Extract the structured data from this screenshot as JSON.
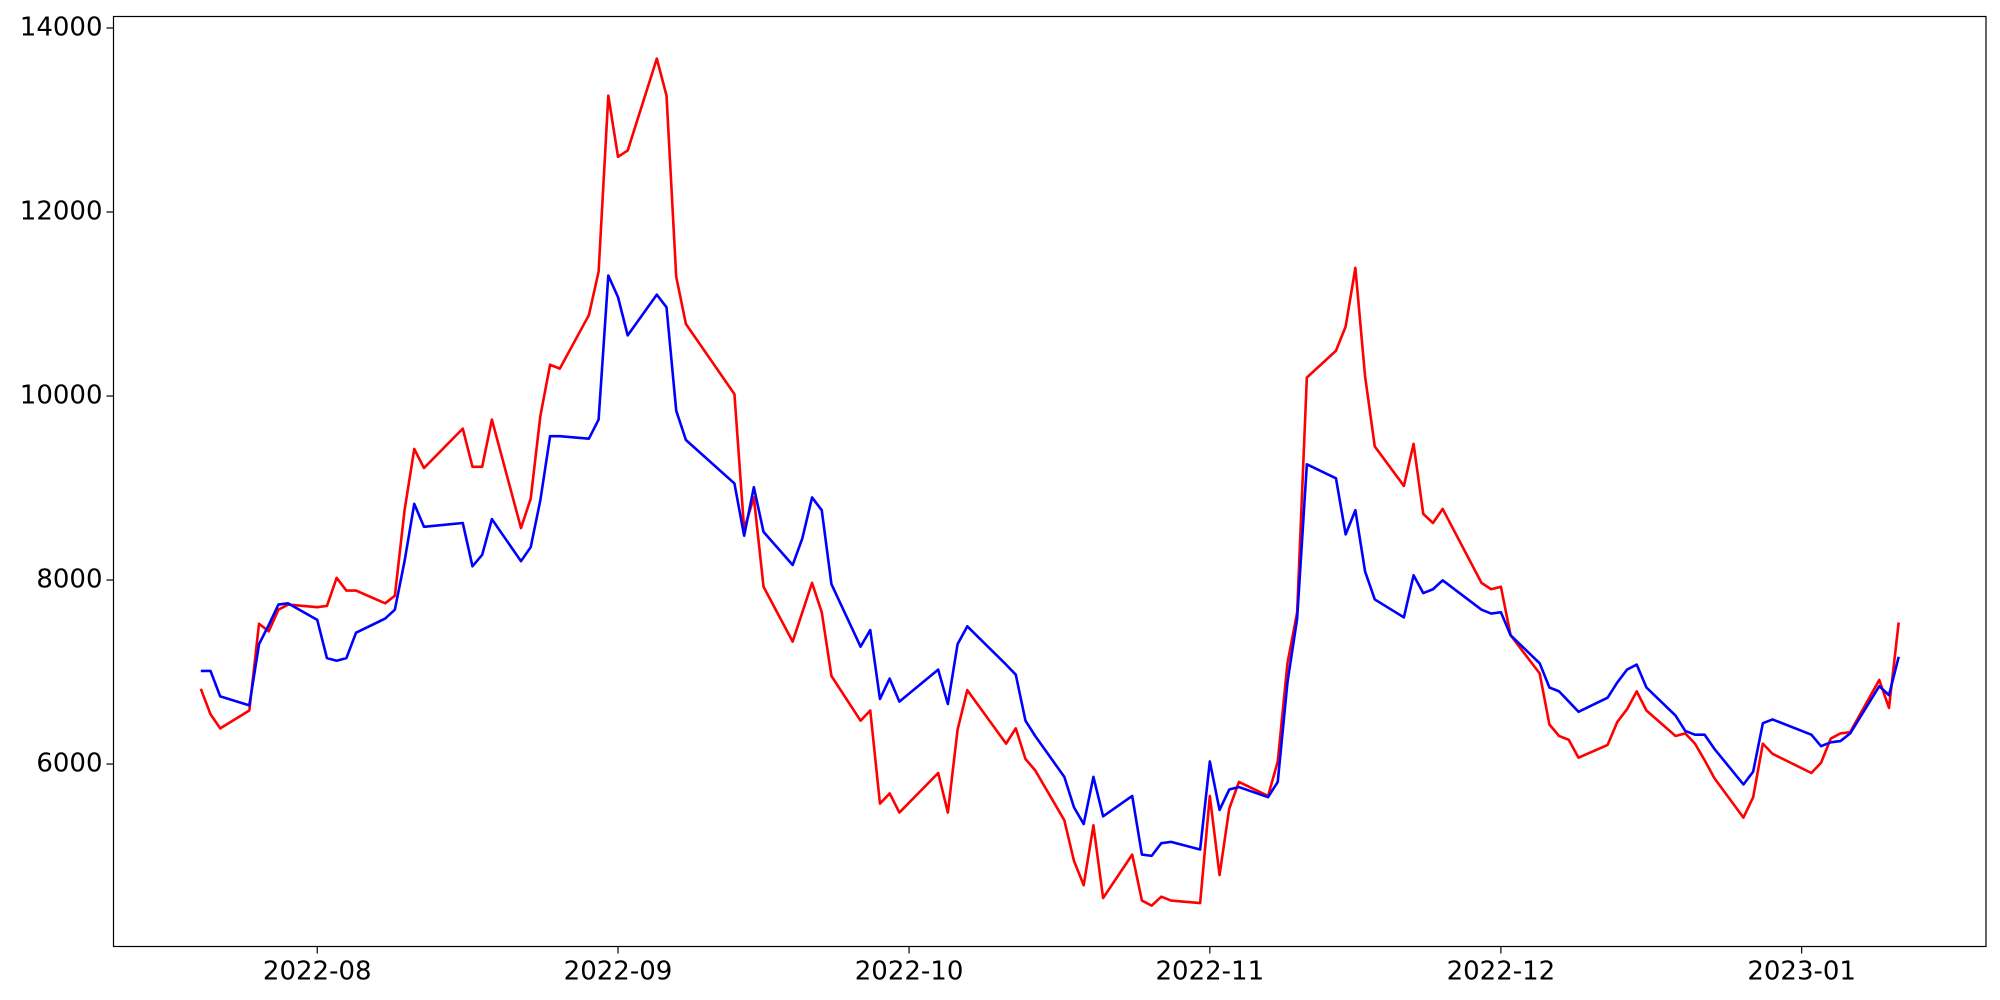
{
  "chart_data": {
    "type": "line",
    "x": [
      "2022-07-20",
      "2022-07-21",
      "2022-07-22",
      "2022-07-25",
      "2022-07-26",
      "2022-07-27",
      "2022-07-28",
      "2022-07-29",
      "2022-08-01",
      "2022-08-02",
      "2022-08-03",
      "2022-08-04",
      "2022-08-05",
      "2022-08-08",
      "2022-08-09",
      "2022-08-10",
      "2022-08-11",
      "2022-08-12",
      "2022-08-16",
      "2022-08-17",
      "2022-08-18",
      "2022-08-19",
      "2022-08-22",
      "2022-08-23",
      "2022-08-24",
      "2022-08-25",
      "2022-08-26",
      "2022-08-29",
      "2022-08-30",
      "2022-08-31",
      "2022-09-01",
      "2022-09-02",
      "2022-09-05",
      "2022-09-06",
      "2022-09-07",
      "2022-09-08",
      "2022-09-13",
      "2022-09-14",
      "2022-09-15",
      "2022-09-16",
      "2022-09-19",
      "2022-09-20",
      "2022-09-21",
      "2022-09-22",
      "2022-09-23",
      "2022-09-26",
      "2022-09-27",
      "2022-09-28",
      "2022-09-29",
      "2022-09-30",
      "2022-10-04",
      "2022-10-05",
      "2022-10-06",
      "2022-10-07",
      "2022-10-11",
      "2022-10-12",
      "2022-10-13",
      "2022-10-14",
      "2022-10-17",
      "2022-10-18",
      "2022-10-19",
      "2022-10-20",
      "2022-10-21",
      "2022-10-24",
      "2022-10-25",
      "2022-10-26",
      "2022-10-27",
      "2022-10-28",
      "2022-10-31",
      "2022-11-01",
      "2022-11-02",
      "2022-11-03",
      "2022-11-04",
      "2022-11-07",
      "2022-11-08",
      "2022-11-09",
      "2022-11-10",
      "2022-11-11",
      "2022-11-14",
      "2022-11-15",
      "2022-11-16",
      "2022-11-17",
      "2022-11-18",
      "2022-11-21",
      "2022-11-22",
      "2022-11-23",
      "2022-11-24",
      "2022-11-25",
      "2022-11-29",
      "2022-11-30",
      "2022-12-01",
      "2022-12-02",
      "2022-12-05",
      "2022-12-06",
      "2022-12-07",
      "2022-12-08",
      "2022-12-09",
      "2022-12-12",
      "2022-12-13",
      "2022-12-14",
      "2022-12-15",
      "2022-12-16",
      "2022-12-19",
      "2022-12-20",
      "2022-12-21",
      "2022-12-22",
      "2022-12-23",
      "2022-12-26",
      "2022-12-27",
      "2022-12-28",
      "2022-12-29",
      "2023-01-02",
      "2023-01-03",
      "2023-01-04",
      "2023-01-05",
      "2023-01-06",
      "2023-01-09",
      "2023-01-10",
      "2023-01-11"
    ],
    "series": [
      {
        "color": "#ff0000",
        "values": [
          6818,
          6541,
          6388,
          6582,
          7525,
          7442,
          7678,
          7733,
          7705,
          7719,
          8024,
          7886,
          7886,
          7747,
          7830,
          8759,
          9425,
          9217,
          9646,
          9231,
          9231,
          9744,
          8565,
          8884,
          9785,
          10340,
          10298,
          10880,
          11352,
          13265,
          12600,
          12669,
          13667,
          13265,
          11296,
          10783,
          10021,
          8551,
          8898,
          7927,
          7331,
          7650,
          7969,
          7650,
          6957,
          6471,
          6582,
          5570,
          5681,
          5473,
          5903,
          5473,
          6374,
          6804,
          6222,
          6388,
          6055,
          5931,
          5390,
          4946,
          4683,
          5334,
          4544,
          5016,
          4516,
          4461,
          4558,
          4516,
          4489,
          5653,
          4794,
          5515,
          5806,
          5653,
          6028,
          7095,
          7650,
          10201,
          10492,
          10756,
          11393,
          10215,
          9452,
          9023,
          9480,
          8718,
          8620,
          8773,
          7969,
          7900,
          7927,
          7400,
          6984,
          6430,
          6305,
          6263,
          6069,
          6208,
          6458,
          6596,
          6790,
          6582,
          6305,
          6333,
          6222,
          6042,
          5847,
          5418,
          5640,
          6222,
          6111,
          5903,
          6014,
          6277,
          6333,
          6347,
          6915,
          6610,
          7539
        ]
      },
      {
        "color": "#0000ff",
        "values": [
          7012,
          7012,
          6735,
          6638,
          7303,
          7511,
          7733,
          7747,
          7567,
          7151,
          7123,
          7151,
          7428,
          7581,
          7678,
          8205,
          8828,
          8579,
          8620,
          8149,
          8274,
          8662,
          8205,
          8357,
          8870,
          9563,
          9563,
          9536,
          9744,
          11310,
          11075,
          10659,
          11102,
          10964,
          9841,
          9522,
          9050,
          8482,
          9009,
          8523,
          8163,
          8454,
          8898,
          8759,
          7955,
          7276,
          7456,
          6707,
          6929,
          6679,
          7026,
          6652,
          7303,
          7497,
          7081,
          6971,
          6471,
          6305,
          5861,
          5529,
          5348,
          5861,
          5432,
          5653,
          5016,
          5002,
          5140,
          5154,
          5071,
          6028,
          5501,
          5723,
          5750,
          5640,
          5806,
          6887,
          7581,
          9258,
          9106,
          8496,
          8759,
          8094,
          7789,
          7594,
          8052,
          7858,
          7900,
          7997,
          7678,
          7636,
          7650,
          7400,
          7095,
          6832,
          6790,
          6679,
          6568,
          6721,
          6887,
          7026,
          7081,
          6832,
          6527,
          6360,
          6319,
          6319,
          6166,
          5778,
          5917,
          6444,
          6485,
          6319,
          6194,
          6236,
          6250,
          6333,
          6846,
          6749,
          7165
        ]
      }
    ],
    "xlim": [
      "2022-07-11",
      "2023-01-20"
    ],
    "xticks": [
      "2022-08",
      "2022-09",
      "2022-10",
      "2022-11",
      "2022-12",
      "2023-01"
    ],
    "ylim": [
      4017,
      14125
    ],
    "yticks": [
      6000,
      8000,
      10000,
      12000,
      14000
    ]
  }
}
